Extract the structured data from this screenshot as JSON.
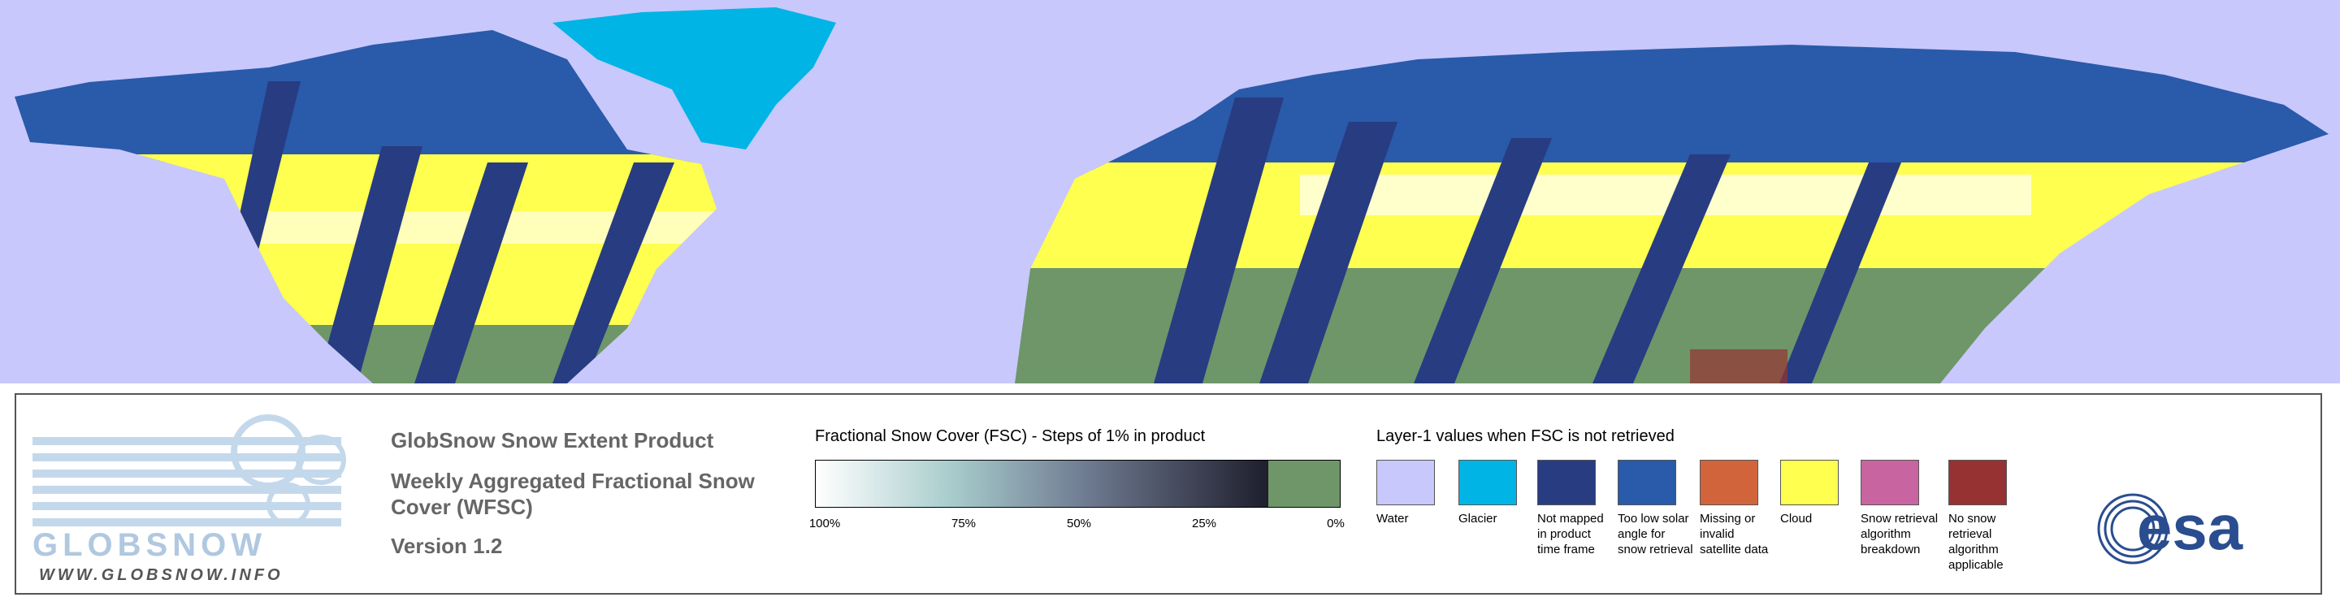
{
  "logo": {
    "name": "GLOBSNOW",
    "url": "WWW.GLOBSNOW.INFO"
  },
  "product": {
    "title": "GlobSnow Snow Extent Product",
    "subtitle": "Weekly Aggregated Fractional Snow Cover (WFSC)",
    "version": "Version 1.2"
  },
  "colorbar": {
    "title": "Fractional Snow Cover (FSC) - Steps of 1% in product",
    "labels": [
      "100%",
      "75%",
      "50%",
      "25%",
      "0%"
    ]
  },
  "layer1": {
    "title": "Layer-1 values when FSC is not retrieved",
    "items": [
      {
        "label": "Water",
        "color": "#c8c8fc"
      },
      {
        "label": "Glacier",
        "color": "#00b4e6"
      },
      {
        "label": "Not mapped in product time frame",
        "color": "#283c82"
      },
      {
        "label": "Too low solar angle for snow retrieval",
        "color": "#2a5aaa"
      },
      {
        "label": "Missing or invalid satellite data",
        "color": "#d2643c"
      },
      {
        "label": "Cloud",
        "color": "#ffff50"
      },
      {
        "label": "Snow retrieval algorithm breakdown",
        "color": "#c864a0"
      },
      {
        "label": "No snow retrieval algorithm applicable",
        "color": "#963232"
      }
    ]
  },
  "agency": "esa"
}
